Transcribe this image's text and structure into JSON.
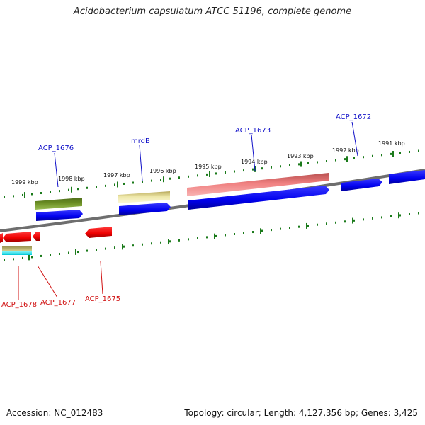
{
  "title": "Acidobacterium capsulatum ATCC 51196, complete genome",
  "accession_text": "Accession: NC_012483",
  "summary_text": "Topology: circular; Length: 4,127,356 bp; Genes: 3,425",
  "colors": {
    "backbone": "#808080",
    "scale_ticks": "#1a7a1a",
    "label_forward": "#1010c8",
    "label_reverse": "#d01010",
    "cds_forward": "#0000ee",
    "cds_reverse": "#ee0000"
  },
  "scale_labels": [
    "1999 kbp",
    "1998 kbp",
    "1997 kbp",
    "1996 kbp",
    "1995 kbp",
    "1994 kbp",
    "1993 kbp",
    "1992 kbp",
    "1991 kbp"
  ],
  "gene_labels": [
    {
      "text": "ACP_1676",
      "strand": "forward"
    },
    {
      "text": "mrdB",
      "strand": "forward"
    },
    {
      "text": "ACP_1673",
      "strand": "forward"
    },
    {
      "text": "ACP_1672",
      "strand": "forward"
    },
    {
      "text": "ACP_1678",
      "strand": "reverse"
    },
    {
      "text": "ACP_1677",
      "strand": "reverse"
    },
    {
      "text": "ACP_1675",
      "strand": "reverse"
    }
  ],
  "features": [
    {
      "name": "ACP_1676-cog",
      "color": "#6b8e23"
    },
    {
      "name": "ACP_1676-cds",
      "color": "#0000ee"
    },
    {
      "name": "mrdB-cog",
      "color": "#eee8aa"
    },
    {
      "name": "mrdB-cds",
      "color": "#0000ee"
    },
    {
      "name": "ACP_1673-cog",
      "color": "#f08080"
    },
    {
      "name": "ACP_1673-cds",
      "color": "#0000ee"
    },
    {
      "name": "ACP_1672-cds",
      "color": "#0000ee"
    },
    {
      "name": "offscreen-right-cds",
      "color": "#0000ee"
    },
    {
      "name": "ACP_1678-cds",
      "color": "#ee0000"
    },
    {
      "name": "ACP_1677-cds",
      "color": "#ee0000"
    },
    {
      "name": "ACP_1675-cds",
      "color": "#ee0000"
    },
    {
      "name": "ACP_1678-cog-a",
      "color": "#bdb76b"
    },
    {
      "name": "ACP_1678-cog-b",
      "color": "#00ffff"
    }
  ]
}
